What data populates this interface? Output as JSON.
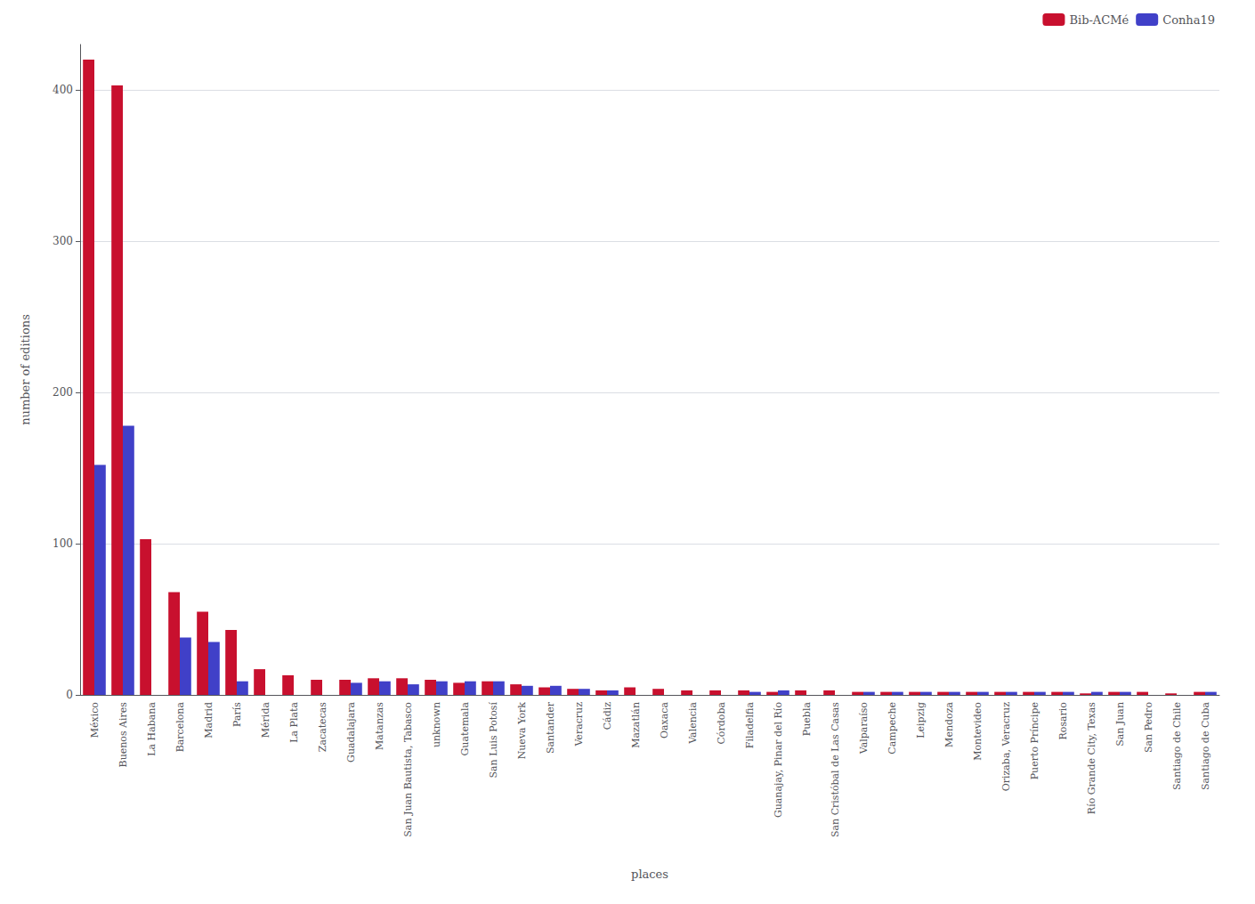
{
  "chart_data": {
    "type": "bar",
    "xlabel": "places",
    "ylabel": "number of editions",
    "categories": [
      "México",
      "Buenos Aires",
      "La Habana",
      "Barcelona",
      "Madrid",
      "París",
      "Mérida",
      "La Plata",
      "Zacatecas",
      "Guadalajara",
      "Matanzas",
      "San Juan Bautista, Tabasco",
      "unknown",
      "Guatemala",
      "San Luis Potosí",
      "Nueva York",
      "Santander",
      "Veracruz",
      "Cádiz",
      "Mazatlán",
      "Oaxaca",
      "Valencia",
      "Córdoba",
      "Filadelfia",
      "Guanajay, Pinar del Río",
      "Puebla",
      "San Cristóbal de Las Casas",
      "Valparaíso",
      "Campeche",
      "Leipzig",
      "Mendoza",
      "Montevideo",
      "Orizaba, Veracruz",
      "Puerto Príncipe",
      "Rosario",
      "Río Grande City, Texas",
      "San Juan",
      "San Pedro",
      "Santiago de Chile",
      "Santiago de Cuba"
    ],
    "series": [
      {
        "name": "Bib-ACMé",
        "color": "#C8102E",
        "values": [
          420,
          403,
          103,
          68,
          55,
          43,
          17,
          13,
          10,
          10,
          11,
          11,
          10,
          8,
          9,
          7,
          5,
          4,
          3,
          5,
          4,
          3,
          3,
          3,
          2,
          3,
          3,
          2,
          2,
          2,
          2,
          2,
          2,
          2,
          2,
          1,
          2,
          2,
          1,
          2
        ]
      },
      {
        "name": "Conha19",
        "color": "#4040C8",
        "values": [
          152,
          178,
          0,
          38,
          35,
          9,
          0,
          0,
          0,
          8,
          9,
          7,
          9,
          9,
          9,
          6,
          6,
          4,
          3,
          0,
          0,
          0,
          0,
          2,
          3,
          0,
          0,
          2,
          2,
          2,
          2,
          2,
          2,
          2,
          2,
          2,
          2,
          0,
          0,
          2
        ]
      }
    ],
    "ylim": [
      0,
      430
    ],
    "yticks": [
      0,
      100,
      200,
      300,
      400
    ],
    "grid": true,
    "legend": "upper right"
  }
}
